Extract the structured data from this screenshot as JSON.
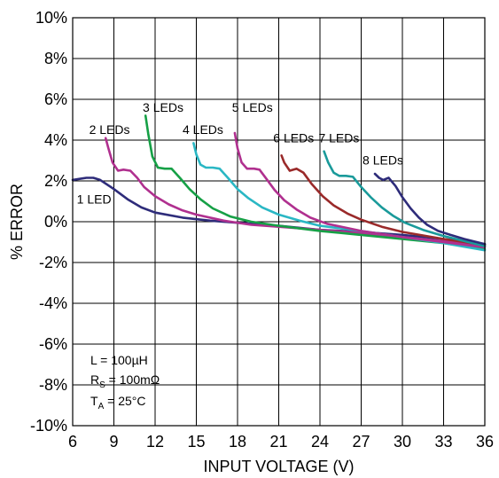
{
  "chart_data": {
    "type": "line",
    "xlabel": "INPUT VOLTAGE (V)",
    "ylabel": "% ERROR",
    "xlim": [
      6,
      36
    ],
    "ylim": [
      -10,
      10
    ],
    "x_ticks": [
      6,
      9,
      12,
      15,
      18,
      21,
      24,
      27,
      30,
      33,
      36
    ],
    "x_tick_labels": [
      "6",
      "9",
      "12",
      "15",
      "18",
      "21",
      "24",
      "27",
      "30",
      "33",
      "36"
    ],
    "y_ticks": [
      -10,
      -8,
      -6,
      -4,
      -2,
      0,
      2,
      4,
      6,
      8,
      10
    ],
    "y_tick_labels": [
      "-10%",
      "-8%",
      "-6%",
      "-4%",
      "-2%",
      "0%",
      "2%",
      "4%",
      "6%",
      "8%",
      "10%"
    ],
    "grid": true,
    "annotations": [
      {
        "id": "inductance",
        "main": "L = 100µH",
        "sub": ""
      },
      {
        "id": "sense-resistor",
        "main": "R",
        "sub": "S",
        "tail": " = 100mΩ"
      },
      {
        "id": "ambient-temp",
        "main": "T",
        "sub": "A",
        "tail": " = 25°C"
      }
    ],
    "series": [
      {
        "name": "1 LED",
        "color": "#2e2c7a",
        "label_at": [
          6.3,
          0.9
        ],
        "points": [
          [
            6,
            2.05
          ],
          [
            6.5,
            2.1
          ],
          [
            7,
            2.15
          ],
          [
            7.5,
            2.15
          ],
          [
            8,
            2.05
          ],
          [
            9,
            1.6
          ],
          [
            10,
            1.1
          ],
          [
            11,
            0.7
          ],
          [
            12,
            0.45
          ],
          [
            14,
            0.2
          ],
          [
            16,
            0.05
          ],
          [
            18,
            -0.05
          ],
          [
            21,
            -0.2
          ],
          [
            24,
            -0.4
          ],
          [
            27,
            -0.5
          ],
          [
            30,
            -0.65
          ],
          [
            33,
            -0.85
          ],
          [
            36,
            -1.1
          ]
        ]
      },
      {
        "name": "2 LEDs",
        "color": "#b0308f",
        "label_at": [
          7.2,
          4.3
        ],
        "points": [
          [
            8.4,
            4.1
          ],
          [
            8.6,
            3.6
          ],
          [
            8.9,
            2.9
          ],
          [
            9.3,
            2.5
          ],
          [
            9.7,
            2.55
          ],
          [
            10.2,
            2.5
          ],
          [
            10.7,
            2.15
          ],
          [
            11.2,
            1.7
          ],
          [
            12,
            1.25
          ],
          [
            13,
            0.85
          ],
          [
            14,
            0.55
          ],
          [
            15,
            0.35
          ],
          [
            17,
            0.05
          ],
          [
            19,
            -0.15
          ],
          [
            21,
            -0.25
          ],
          [
            24,
            -0.4
          ],
          [
            27,
            -0.55
          ],
          [
            30,
            -0.75
          ],
          [
            33,
            -0.95
          ],
          [
            36,
            -1.2
          ]
        ]
      },
      {
        "name": "3 LEDs",
        "color": "#16a046",
        "label_at": [
          11.1,
          5.4
        ],
        "points": [
          [
            11.3,
            5.2
          ],
          [
            11.5,
            4.3
          ],
          [
            11.8,
            3.2
          ],
          [
            12.2,
            2.65
          ],
          [
            12.7,
            2.6
          ],
          [
            13.2,
            2.6
          ],
          [
            13.8,
            2.15
          ],
          [
            14.5,
            1.6
          ],
          [
            15.3,
            1.1
          ],
          [
            16.2,
            0.65
          ],
          [
            17.5,
            0.25
          ],
          [
            19,
            0
          ],
          [
            21,
            -0.2
          ],
          [
            24,
            -0.45
          ],
          [
            27,
            -0.65
          ],
          [
            30,
            -0.85
          ],
          [
            33,
            -1.05
          ],
          [
            36,
            -1.35
          ]
        ]
      },
      {
        "name": "4 LEDs",
        "color": "#2ab7c4",
        "label_at": [
          14.0,
          4.3
        ],
        "points": [
          [
            14.8,
            3.85
          ],
          [
            15,
            3.3
          ],
          [
            15.3,
            2.8
          ],
          [
            15.7,
            2.65
          ],
          [
            16.2,
            2.65
          ],
          [
            16.7,
            2.6
          ],
          [
            17.3,
            2.15
          ],
          [
            18,
            1.6
          ],
          [
            18.8,
            1.15
          ],
          [
            19.8,
            0.7
          ],
          [
            21,
            0.35
          ],
          [
            22.5,
            0.05
          ],
          [
            24,
            -0.2
          ],
          [
            27,
            -0.45
          ],
          [
            30,
            -0.75
          ],
          [
            33,
            -1.05
          ],
          [
            36,
            -1.4
          ]
        ]
      },
      {
        "name": "5 LEDs",
        "color": "#b0308f",
        "label_at": [
          17.6,
          5.4
        ],
        "points": [
          [
            17.8,
            4.35
          ],
          [
            18,
            3.6
          ],
          [
            18.3,
            2.9
          ],
          [
            18.7,
            2.6
          ],
          [
            19.2,
            2.6
          ],
          [
            19.6,
            2.55
          ],
          [
            20.1,
            2.1
          ],
          [
            20.7,
            1.55
          ],
          [
            21.4,
            1.05
          ],
          [
            22.3,
            0.6
          ],
          [
            23.3,
            0.2
          ],
          [
            24.5,
            -0.1
          ],
          [
            27,
            -0.45
          ],
          [
            30,
            -0.75
          ],
          [
            33,
            -1.0
          ],
          [
            36,
            -1.25
          ]
        ]
      },
      {
        "name": "6 LEDs",
        "color": "#9a2a2a",
        "label_at": [
          20.6,
          3.9
        ],
        "points": [
          [
            21.2,
            3.25
          ],
          [
            21.4,
            2.9
          ],
          [
            21.8,
            2.5
          ],
          [
            22.3,
            2.6
          ],
          [
            22.8,
            2.4
          ],
          [
            23.4,
            1.85
          ],
          [
            24.2,
            1.25
          ],
          [
            25,
            0.8
          ],
          [
            26,
            0.4
          ],
          [
            27,
            0.1
          ],
          [
            28.5,
            -0.25
          ],
          [
            30,
            -0.5
          ],
          [
            33,
            -0.85
          ],
          [
            36,
            -1.15
          ]
        ]
      },
      {
        "name": "7 LEDs",
        "color": "#1a9a9a",
        "label_at": [
          23.9,
          3.9
        ],
        "points": [
          [
            24.3,
            3.45
          ],
          [
            24.6,
            2.9
          ],
          [
            25,
            2.4
          ],
          [
            25.4,
            2.25
          ],
          [
            25.9,
            2.25
          ],
          [
            26.4,
            2.2
          ],
          [
            27,
            1.7
          ],
          [
            27.7,
            1.2
          ],
          [
            28.5,
            0.7
          ],
          [
            29.3,
            0.3
          ],
          [
            30.2,
            -0.05
          ],
          [
            31.5,
            -0.4
          ],
          [
            33,
            -0.7
          ],
          [
            36,
            -1.2
          ]
        ]
      },
      {
        "name": "8 LEDs",
        "color": "#2e2c7a",
        "label_at": [
          27.1,
          2.8
        ],
        "points": [
          [
            28,
            2.35
          ],
          [
            28.3,
            2.15
          ],
          [
            28.6,
            2.05
          ],
          [
            29,
            2.15
          ],
          [
            29.5,
            1.75
          ],
          [
            30,
            1.2
          ],
          [
            30.6,
            0.65
          ],
          [
            31.2,
            0.2
          ],
          [
            31.8,
            -0.15
          ],
          [
            32.6,
            -0.45
          ],
          [
            33.5,
            -0.65
          ],
          [
            34.5,
            -0.85
          ],
          [
            36,
            -1.1
          ]
        ]
      }
    ]
  }
}
